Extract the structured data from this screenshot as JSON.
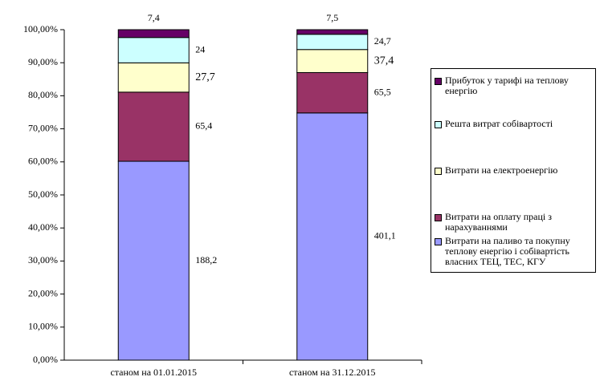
{
  "chart_data": {
    "type": "bar",
    "stacking": "percent",
    "categories": [
      "станом на 01.01.2015",
      "станом на 31.12.2015"
    ],
    "series": [
      {
        "name": "Витрати на паливо та покупну теплову енергію і собівартість власних ТЕЦ, ТЕС, КГУ",
        "color": "#9999ff",
        "values": [
          188.2,
          401.1
        ],
        "value_labels": [
          "188,2",
          "401,1"
        ]
      },
      {
        "name": "Витрати на оплату праці з нарахуваннями",
        "color": "#993366",
        "values": [
          65.4,
          65.5
        ],
        "value_labels": [
          "65,4",
          "65,5"
        ]
      },
      {
        "name": "Витрати на електроенергію",
        "color": "#ffffcc",
        "values": [
          27.7,
          37.4
        ],
        "value_labels": [
          "27,7",
          "37,4"
        ]
      },
      {
        "name": "Решта витрат собівартості",
        "color": "#ccffff",
        "values": [
          24,
          24.7
        ],
        "value_labels": [
          "24",
          "24,7"
        ]
      },
      {
        "name": "Прибуток у тарифі на теплову енергію",
        "color": "#660066",
        "values": [
          7.4,
          7.5
        ],
        "value_labels": [
          "7,4",
          "7,5"
        ]
      }
    ],
    "ylim": [
      0,
      100
    ],
    "yticks": [
      {
        "value": 0,
        "label": "0,00%"
      },
      {
        "value": 10,
        "label": "10,00%"
      },
      {
        "value": 20,
        "label": "20,00%"
      },
      {
        "value": 30,
        "label": "30,00%"
      },
      {
        "value": 40,
        "label": "40,00%"
      },
      {
        "value": 50,
        "label": "50,00%"
      },
      {
        "value": 60,
        "label": "60,00%"
      },
      {
        "value": 70,
        "label": "70,00%"
      },
      {
        "value": 80,
        "label": "80,00%"
      },
      {
        "value": 90,
        "label": "90,00%"
      },
      {
        "value": 100,
        "label": "100,00%"
      }
    ],
    "grid": false,
    "legend": "right"
  }
}
